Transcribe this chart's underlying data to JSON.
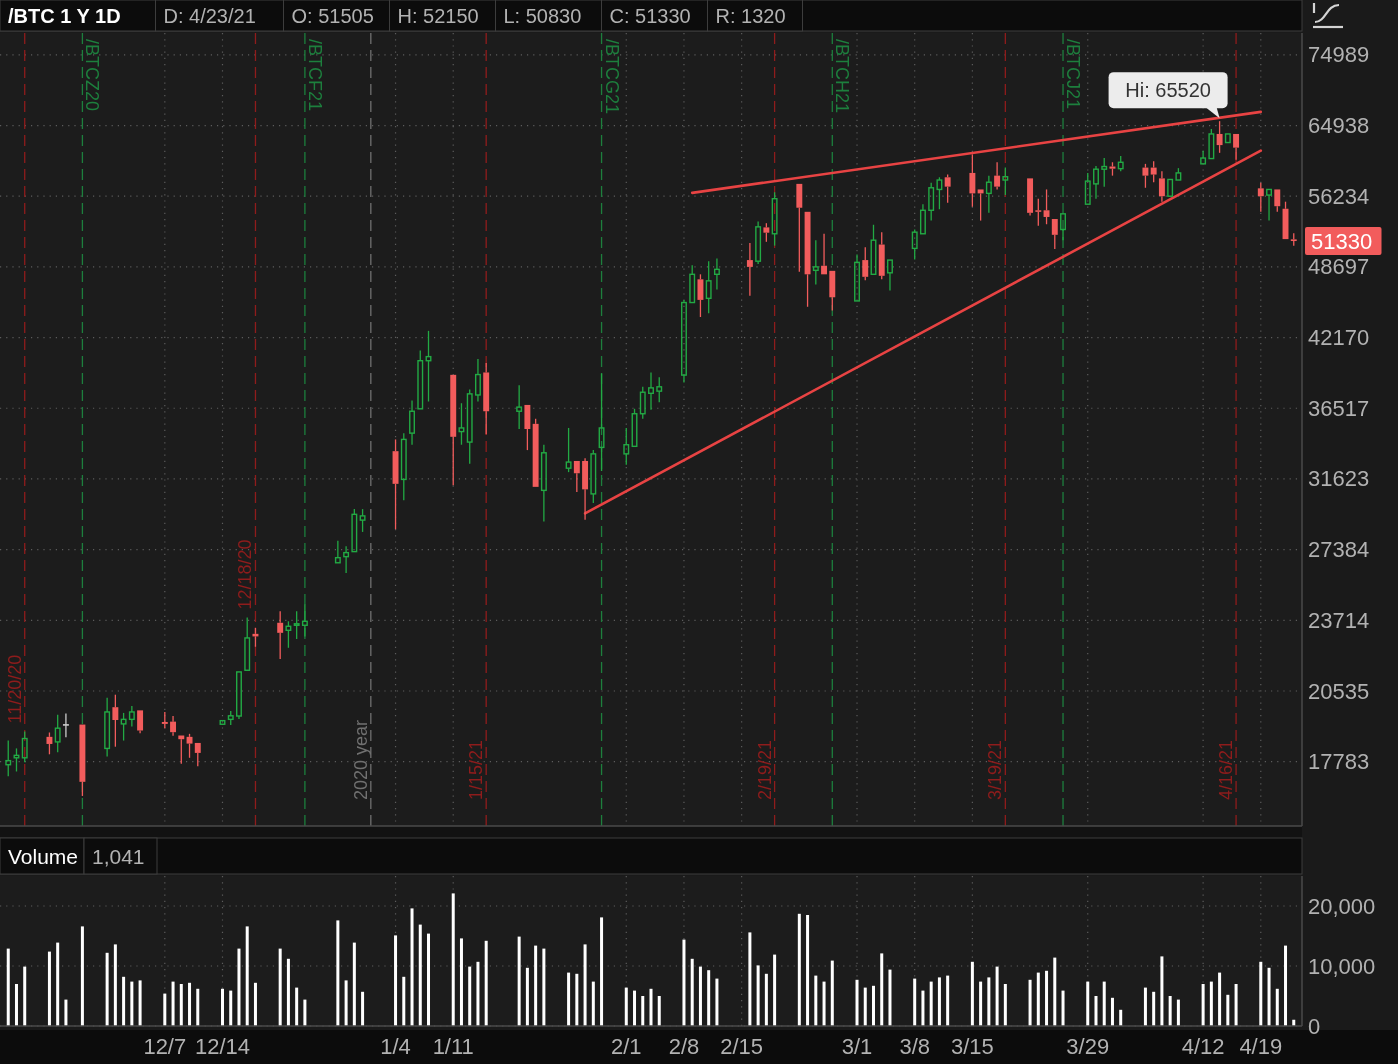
{
  "chart_data": [
    {
      "type": "candlestick",
      "title": "/BTC 1 Y 1D",
      "annotations": [
        "D: 4/23/21",
        "O: 51505",
        "H: 52150",
        "L: 50830",
        "C: 51330",
        "R: 1320",
        {
          "text": "Hi: 65520",
          "x": "2021-04-14",
          "y": 65520
        },
        {
          "text": "51330",
          "x": "2021-04-23",
          "y": 51330
        }
      ],
      "x": [
        "2020-11-18",
        "2020-11-19",
        "2020-11-20",
        "2020-11-23",
        "2020-11-24",
        "2020-11-25",
        "2020-11-27",
        "2020-11-30",
        "2020-12-01",
        "2020-12-02",
        "2020-12-03",
        "2020-12-04",
        "2020-12-07",
        "2020-12-08",
        "2020-12-09",
        "2020-12-10",
        "2020-12-11",
        "2020-12-14",
        "2020-12-15",
        "2020-12-16",
        "2020-12-17",
        "2020-12-18",
        "2020-12-21",
        "2020-12-22",
        "2020-12-23",
        "2020-12-24",
        "2020-12-28",
        "2020-12-29",
        "2020-12-30",
        "2020-12-31",
        "2021-01-04",
        "2021-01-05",
        "2021-01-06",
        "2021-01-07",
        "2021-01-08",
        "2021-01-11",
        "2021-01-12",
        "2021-01-13",
        "2021-01-14",
        "2021-01-15",
        "2021-01-19",
        "2021-01-20",
        "2021-01-21",
        "2021-01-22",
        "2021-01-25",
        "2021-01-26",
        "2021-01-27",
        "2021-01-28",
        "2021-01-29",
        "2021-02-01",
        "2021-02-02",
        "2021-02-03",
        "2021-02-04",
        "2021-02-05",
        "2021-02-08",
        "2021-02-09",
        "2021-02-10",
        "2021-02-11",
        "2021-02-12",
        "2021-02-16",
        "2021-02-17",
        "2021-02-18",
        "2021-02-19",
        "2021-02-22",
        "2021-02-23",
        "2021-02-24",
        "2021-02-25",
        "2021-02-26",
        "2021-03-01",
        "2021-03-02",
        "2021-03-03",
        "2021-03-04",
        "2021-03-05",
        "2021-03-08",
        "2021-03-09",
        "2021-03-10",
        "2021-03-11",
        "2021-03-12",
        "2021-03-15",
        "2021-03-16",
        "2021-03-17",
        "2021-03-18",
        "2021-03-19",
        "2021-03-22",
        "2021-03-23",
        "2021-03-24",
        "2021-03-25",
        "2021-03-26",
        "2021-03-29",
        "2021-03-30",
        "2021-03-31",
        "2021-04-01",
        "2021-04-02",
        "2021-04-05",
        "2021-04-06",
        "2021-04-07",
        "2021-04-08",
        "2021-04-09",
        "2021-04-12",
        "2021-04-13",
        "2021-04-14",
        "2021-04-15",
        "2021-04-16",
        "2021-04-19",
        "2021-04-20",
        "2021-04-21",
        "2021-04-22",
        "2021-04-23"
      ],
      "ohlc": [
        [
          17673,
          18564,
          17266,
          17821
        ],
        [
          17924,
          18270,
          17431,
          18013
        ],
        [
          17924,
          18909,
          17760,
          18641
        ],
        [
          18705,
          18871,
          18052,
          18436
        ],
        [
          18513,
          19562,
          18129,
          19037
        ],
        [
          19165,
          19613,
          18692,
          19165
        ],
        [
          19178,
          19229,
          16584,
          17068
        ],
        [
          18269,
          20253,
          17975,
          19677
        ],
        [
          19869,
          20381,
          18333,
          19357
        ],
        [
          19204,
          19639,
          18564,
          19383
        ],
        [
          19383,
          19920,
          19101,
          19677
        ],
        [
          19741,
          19767,
          18845,
          18948
        ],
        [
          19280,
          19677,
          19037,
          19204
        ],
        [
          19293,
          19511,
          18743,
          18884
        ],
        [
          18756,
          18781,
          17706,
          18615
        ],
        [
          18705,
          18820,
          17924,
          18449
        ],
        [
          18474,
          18513,
          17618,
          18103
        ],
        [
          19191,
          19421,
          19101,
          19332
        ],
        [
          19383,
          19716,
          19165,
          19524
        ],
        [
          19515,
          21420,
          19393,
          21348
        ],
        [
          21420,
          23853,
          21348,
          22877
        ],
        [
          23069,
          23356,
          22471,
          22949
        ],
        [
          23595,
          24159,
          21921,
          23117
        ],
        [
          23236,
          23666,
          22423,
          23427
        ],
        [
          23475,
          24159,
          22830,
          23547
        ],
        [
          23475,
          24492,
          22949,
          23666
        ],
        [
          26661,
          27886,
          26661,
          26939
        ],
        [
          26995,
          27572,
          26105,
          27217
        ],
        [
          27273,
          29739,
          27273,
          29425
        ],
        [
          29080,
          29739,
          28389,
          29331
        ],
        [
          33463,
          34273,
          28546,
          31309
        ],
        [
          31592,
          34714,
          30273,
          34273
        ],
        [
          34714,
          37108,
          33905,
          36296
        ],
        [
          36475,
          41073,
          36475,
          40229
        ],
        [
          40229,
          42750,
          37023,
          40566
        ],
        [
          39089,
          39089,
          31215,
          34456
        ],
        [
          34824,
          36894,
          33904,
          35082
        ],
        [
          34088,
          37938,
          32611,
          37603
        ],
        [
          37519,
          40368,
          37016,
          39111
        ],
        [
          39279,
          40033,
          34640,
          36296
        ],
        [
          36296,
          38273,
          35008,
          36601
        ],
        [
          36765,
          36765,
          33536,
          35008
        ],
        [
          35376,
          35744,
          30991,
          31117
        ],
        [
          30896,
          33904,
          29000,
          33352
        ],
        [
          32323,
          35082,
          32065,
          32728
        ],
        [
          32801,
          32801,
          30801,
          31991
        ],
        [
          32801,
          32985,
          29095,
          30959
        ],
        [
          30675,
          33536,
          30106,
          33279
        ],
        [
          33720,
          39195,
          32138,
          35082
        ],
        [
          33279,
          35082,
          32543,
          33904
        ],
        [
          33794,
          36480,
          33794,
          36112
        ],
        [
          36112,
          38148,
          35744,
          37729
        ],
        [
          37645,
          39279,
          36407,
          38064
        ],
        [
          37812,
          38902,
          36975,
          38148
        ],
        [
          39069,
          45532,
          38483,
          45288
        ],
        [
          45288,
          48867,
          45288,
          47967
        ],
        [
          47480,
          47967,
          43973,
          45532
        ],
        [
          45678,
          49264,
          44314,
          47333
        ],
        [
          47967,
          49547,
          46506,
          48454
        ],
        [
          49377,
          51135,
          45921,
          48697
        ],
        [
          49264,
          53399,
          48981,
          52832
        ],
        [
          52775,
          53229,
          51248,
          52208
        ],
        [
          52095,
          56689,
          50851,
          55950
        ],
        [
          57664,
          57794,
          48210,
          54930
        ],
        [
          54476,
          54476,
          44899,
          47967
        ],
        [
          48356,
          51418,
          46993,
          48697
        ],
        [
          48810,
          52095,
          47967,
          47967
        ],
        [
          48307,
          48307,
          44558,
          45776
        ],
        [
          45435,
          49944,
          45435,
          49151
        ],
        [
          49377,
          50681,
          47382,
          47723
        ],
        [
          47967,
          53059,
          47967,
          51418
        ],
        [
          50964,
          52265,
          47480,
          47820
        ],
        [
          48113,
          49547,
          46408,
          49377
        ],
        [
          50564,
          52549,
          49434,
          52265
        ],
        [
          52095,
          55327,
          51982,
          54646
        ],
        [
          54646,
          57794,
          53512,
          57209
        ],
        [
          57014,
          58444,
          54760,
          58119
        ],
        [
          58444,
          58769,
          55497,
          57339
        ],
        [
          58964,
          61233,
          55043,
          56559
        ],
        [
          57014,
          57014,
          53512,
          56559
        ],
        [
          56559,
          58639,
          54363,
          57859
        ],
        [
          58639,
          60258,
          57014,
          57339
        ],
        [
          58119,
          59608,
          56364,
          58509
        ],
        [
          58314,
          58314,
          54079,
          54363
        ],
        [
          54646,
          55951,
          52945,
          54476
        ],
        [
          54646,
          57014,
          53115,
          53909
        ],
        [
          53682,
          53682,
          50507,
          51982
        ],
        [
          52549,
          54363,
          51418,
          54250
        ],
        [
          55327,
          58964,
          55100,
          57989
        ],
        [
          57664,
          59803,
          55951,
          59413
        ],
        [
          59413,
          60778,
          57339,
          59738
        ],
        [
          59738,
          60258,
          58639,
          59478
        ],
        [
          59478,
          61038,
          59153,
          60258
        ],
        [
          59608,
          60063,
          57209,
          58639
        ],
        [
          59608,
          60388,
          57859,
          58769
        ],
        [
          58314,
          59153,
          55610,
          56234
        ],
        [
          56234,
          58444,
          56064,
          58184
        ],
        [
          58119,
          59543,
          57989,
          58964
        ],
        [
          60063,
          61688,
          59933,
          60778
        ],
        [
          60713,
          64483,
          60583,
          63833
        ],
        [
          63833,
          65520,
          61428,
          62403
        ],
        [
          62728,
          64028,
          62533,
          63833
        ],
        [
          63833,
          63963,
          60583,
          62078
        ],
        [
          57144,
          57794,
          54476,
          56234
        ],
        [
          56364,
          57014,
          53512,
          57014
        ],
        [
          57014,
          57014,
          54476,
          55100
        ],
        [
          54817,
          55610,
          51532,
          51532
        ],
        [
          51505,
          52150,
          50830,
          51330
        ]
      ],
      "colors": [
        "#22aa44",
        "#22aa44",
        "#22aa44",
        "#f25c5c",
        "#22aa44",
        "#cccccc",
        "#f25c5c",
        "#22aa44",
        "#f25c5c",
        "#22aa44",
        "#22aa44",
        "#f25c5c",
        "#f25c5c",
        "#f25c5c",
        "#f25c5c",
        "#f25c5c",
        "#f25c5c",
        "#22aa44",
        "#22aa44",
        "#22aa44",
        "#22aa44",
        "#f25c5c",
        "#f25c5c",
        "#22aa44",
        "#22aa44",
        "#22aa44",
        "#22aa44",
        "#22aa44",
        "#22aa44",
        "#22aa44",
        "#f25c5c",
        "#22aa44",
        "#22aa44",
        "#22aa44",
        "#22aa44",
        "#f25c5c",
        "#22aa44",
        "#22aa44",
        "#22aa44",
        "#f25c5c",
        "#22aa44",
        "#f25c5c",
        "#f25c5c",
        "#22aa44",
        "#22aa44",
        "#f25c5c",
        "#f25c5c",
        "#22aa44",
        "#22aa44",
        "#22aa44",
        "#22aa44",
        "#22aa44",
        "#22aa44",
        "#22aa44",
        "#22aa44",
        "#22aa44",
        "#f25c5c",
        "#22aa44",
        "#22aa44",
        "#f25c5c",
        "#22aa44",
        "#f25c5c",
        "#22aa44",
        "#f25c5c",
        "#f25c5c",
        "#22aa44",
        "#f25c5c",
        "#f25c5c",
        "#22aa44",
        "#f25c5c",
        "#22aa44",
        "#f25c5c",
        "#22aa44",
        "#22aa44",
        "#22aa44",
        "#22aa44",
        "#22aa44",
        "#f25c5c",
        "#f25c5c",
        "#f25c5c",
        "#22aa44",
        "#f25c5c",
        "#22aa44",
        "#f25c5c",
        "#f25c5c",
        "#f25c5c",
        "#f25c5c",
        "#22aa44",
        "#22aa44",
        "#22aa44",
        "#22aa44",
        "#f25c5c",
        "#22aa44",
        "#f25c5c",
        "#f25c5c",
        "#f25c5c",
        "#22aa44",
        "#22aa44",
        "#22aa44",
        "#22aa44",
        "#f25c5c",
        "#22aa44",
        "#f25c5c",
        "#f25c5c",
        "#22aa44",
        "#f25c5c",
        "#f25c5c",
        "#f25c5c"
      ],
      "series": [
        {
          "type": "line",
          "x": [
            "2021-02-09",
            "2021-04-19"
          ],
          "values": [
            56614,
            66767
          ],
          "color": "#e84343"
        },
        {
          "type": "line",
          "x": [
            "2021-01-27",
            "2021-04-19"
          ],
          "values": [
            29484,
            61696
          ],
          "color": "#e84343"
        }
      ],
      "xlim": [
        "2020-11-17",
        "2021-04-24"
      ],
      "xticks": [
        {
          "value": "2020-12-07",
          "label": null
        },
        {
          "value": "2020-12-14",
          "label": null
        },
        {
          "value": "2021-01-04",
          "label": null
        },
        {
          "value": "2021-01-11",
          "label": null
        },
        {
          "value": "2021-02-01",
          "label": null
        },
        {
          "value": "2021-02-08",
          "label": null
        },
        {
          "value": "2021-02-15",
          "label": null
        },
        {
          "value": "2021-03-01",
          "label": null
        },
        {
          "value": "2021-03-08",
          "label": null
        },
        {
          "value": "2021-03-15",
          "label": null
        },
        {
          "value": "2021-03-29",
          "label": null
        },
        {
          "value": "2021-04-12",
          "label": null
        },
        {
          "value": "2021-04-19",
          "label": null
        }
      ],
      "ylim": [
        15600,
        78400
      ],
      "yticks": [
        74989,
        64938,
        56234,
        48697,
        42170,
        36517,
        31623,
        27384,
        23714,
        20535,
        17783
      ],
      "log": true,
      "grid": true,
      "tick_labels": "y",
      "ref_lines": [
        {
          "axis": "x",
          "value": "2020-11-20",
          "label": "11/20/20",
          "color": "#8f1c1c",
          "line_style": "dashed"
        },
        {
          "axis": "x",
          "value": "2020-11-27",
          "label": "/BTCZ20",
          "color": "#1d7f3d",
          "line_style": "dashed"
        },
        {
          "axis": "x",
          "value": "2020-12-18",
          "label": "12/18/20",
          "color": "#8f1c1c",
          "line_style": "dashed"
        },
        {
          "axis": "x",
          "value": "2020-12-24",
          "label": "/BTCF21",
          "color": "#1d7f3d",
          "line_style": "dashed"
        },
        {
          "axis": "x",
          "value": "2021-01-01",
          "label": "2020 year",
          "color": "#707070",
          "line_style": "dashed"
        },
        {
          "axis": "x",
          "value": "2021-01-15",
          "label": "1/15/21",
          "color": "#8f1c1c",
          "line_style": "dashed"
        },
        {
          "axis": "x",
          "value": "2021-01-29",
          "label": "/BTCG21",
          "color": "#1d7f3d",
          "line_style": "dashed"
        },
        {
          "axis": "x",
          "value": "2021-02-19",
          "label": "2/19/21",
          "color": "#8f1c1c",
          "line_style": "dashed"
        },
        {
          "axis": "x",
          "value": "2021-02-26",
          "label": "/BTCH21",
          "color": "#1d7f3d",
          "line_style": "dashed"
        },
        {
          "axis": "x",
          "value": "2021-03-19",
          "label": "3/19/21",
          "color": "#8f1c1c",
          "line_style": "dashed"
        },
        {
          "axis": "x",
          "value": "2021-03-26",
          "label": "/BTCJ21",
          "color": "#1d7f3d",
          "line_style": "dashed"
        },
        {
          "axis": "x",
          "value": "2021-04-16",
          "label": "4/16/21",
          "color": "#8f1c1c",
          "line_style": "dashed"
        }
      ]
    },
    {
      "type": "bar",
      "title": "Volume",
      "annotations": [
        "1,041"
      ],
      "x": [
        "2020-11-18",
        "2020-11-19",
        "2020-11-20",
        "2020-11-23",
        "2020-11-24",
        "2020-11-25",
        "2020-11-27",
        "2020-11-30",
        "2020-12-01",
        "2020-12-02",
        "2020-12-03",
        "2020-12-04",
        "2020-12-07",
        "2020-12-08",
        "2020-12-09",
        "2020-12-10",
        "2020-12-11",
        "2020-12-14",
        "2020-12-15",
        "2020-12-16",
        "2020-12-17",
        "2020-12-18",
        "2020-12-21",
        "2020-12-22",
        "2020-12-23",
        "2020-12-24",
        "2020-12-28",
        "2020-12-29",
        "2020-12-30",
        "2020-12-31",
        "2021-01-04",
        "2021-01-05",
        "2021-01-06",
        "2021-01-07",
        "2021-01-08",
        "2021-01-11",
        "2021-01-12",
        "2021-01-13",
        "2021-01-14",
        "2021-01-15",
        "2021-01-19",
        "2021-01-20",
        "2021-01-21",
        "2021-01-22",
        "2021-01-25",
        "2021-01-26",
        "2021-01-27",
        "2021-01-28",
        "2021-01-29",
        "2021-02-01",
        "2021-02-02",
        "2021-02-03",
        "2021-02-04",
        "2021-02-05",
        "2021-02-08",
        "2021-02-09",
        "2021-02-10",
        "2021-02-11",
        "2021-02-12",
        "2021-02-16",
        "2021-02-17",
        "2021-02-18",
        "2021-02-19",
        "2021-02-22",
        "2021-02-23",
        "2021-02-24",
        "2021-02-25",
        "2021-02-26",
        "2021-03-01",
        "2021-03-02",
        "2021-03-03",
        "2021-03-04",
        "2021-03-05",
        "2021-03-08",
        "2021-03-09",
        "2021-03-10",
        "2021-03-11",
        "2021-03-12",
        "2021-03-15",
        "2021-03-16",
        "2021-03-17",
        "2021-03-18",
        "2021-03-19",
        "2021-03-22",
        "2021-03-23",
        "2021-03-24",
        "2021-03-25",
        "2021-03-26",
        "2021-03-29",
        "2021-03-30",
        "2021-03-31",
        "2021-04-01",
        "2021-04-02",
        "2021-04-05",
        "2021-04-06",
        "2021-04-07",
        "2021-04-08",
        "2021-04-09",
        "2021-04-12",
        "2021-04-13",
        "2021-04-14",
        "2021-04-15",
        "2021-04-16",
        "2021-04-19",
        "2021-04-20",
        "2021-04-21",
        "2021-04-22",
        "2021-04-23"
      ],
      "values": [
        12900,
        7000,
        9900,
        12400,
        13900,
        4400,
        16600,
        12200,
        13600,
        8200,
        7400,
        7600,
        5400,
        7400,
        7000,
        7200,
        6200,
        6200,
        5900,
        12900,
        16600,
        7200,
        12900,
        11200,
        6400,
        4400,
        17600,
        7600,
        13900,
        5700,
        15100,
        8200,
        19600,
        16900,
        15400,
        22100,
        14600,
        9900,
        10700,
        14200,
        14900,
        9700,
        13400,
        12900,
        8900,
        8700,
        13600,
        7400,
        18100,
        6400,
        5900,
        5000,
        6200,
        5000,
        14400,
        11200,
        9900,
        9300,
        7900,
        15600,
        10100,
        8700,
        11900,
        18700,
        18500,
        8400,
        7400,
        10900,
        7700,
        6400,
        6700,
        12100,
        9400,
        7900,
        5900,
        7400,
        8100,
        8400,
        10700,
        7400,
        8100,
        9900,
        7000,
        7700,
        8900,
        9200,
        11400,
        5900,
        7400,
        5000,
        7400,
        4700,
        2700,
        6400,
        5700,
        11600,
        5000,
        4400,
        7000,
        7400,
        8900,
        5200,
        7000,
        10700,
        9700,
        6200,
        13400,
        1041
      ],
      "color": "#ffffff",
      "xlim": [
        "2020-11-17",
        "2021-04-24"
      ],
      "xticks": [
        {
          "value": "2020-12-07",
          "label": "12/7"
        },
        {
          "value": "2020-12-14",
          "label": "12/14"
        },
        {
          "value": "2021-01-04",
          "label": "1/4"
        },
        {
          "value": "2021-01-11",
          "label": "1/11"
        },
        {
          "value": "2021-02-01",
          "label": "2/1"
        },
        {
          "value": "2021-02-08",
          "label": "2/8"
        },
        {
          "value": "2021-02-15",
          "label": "2/15"
        },
        {
          "value": "2021-03-01",
          "label": "3/1"
        },
        {
          "value": "2021-03-08",
          "label": "3/8"
        },
        {
          "value": "2021-03-15",
          "label": "3/15"
        },
        {
          "value": "2021-03-29",
          "label": "3/29"
        },
        {
          "value": "2021-04-12",
          "label": "4/12"
        },
        {
          "value": "2021-04-19",
          "label": "4/19"
        }
      ],
      "ylim": [
        0,
        25000
      ],
      "yticks": [
        {
          "value": 20000,
          "label": "20,000"
        },
        {
          "value": 10000,
          "label": "10,000"
        },
        0
      ],
      "grid": true
    }
  ]
}
